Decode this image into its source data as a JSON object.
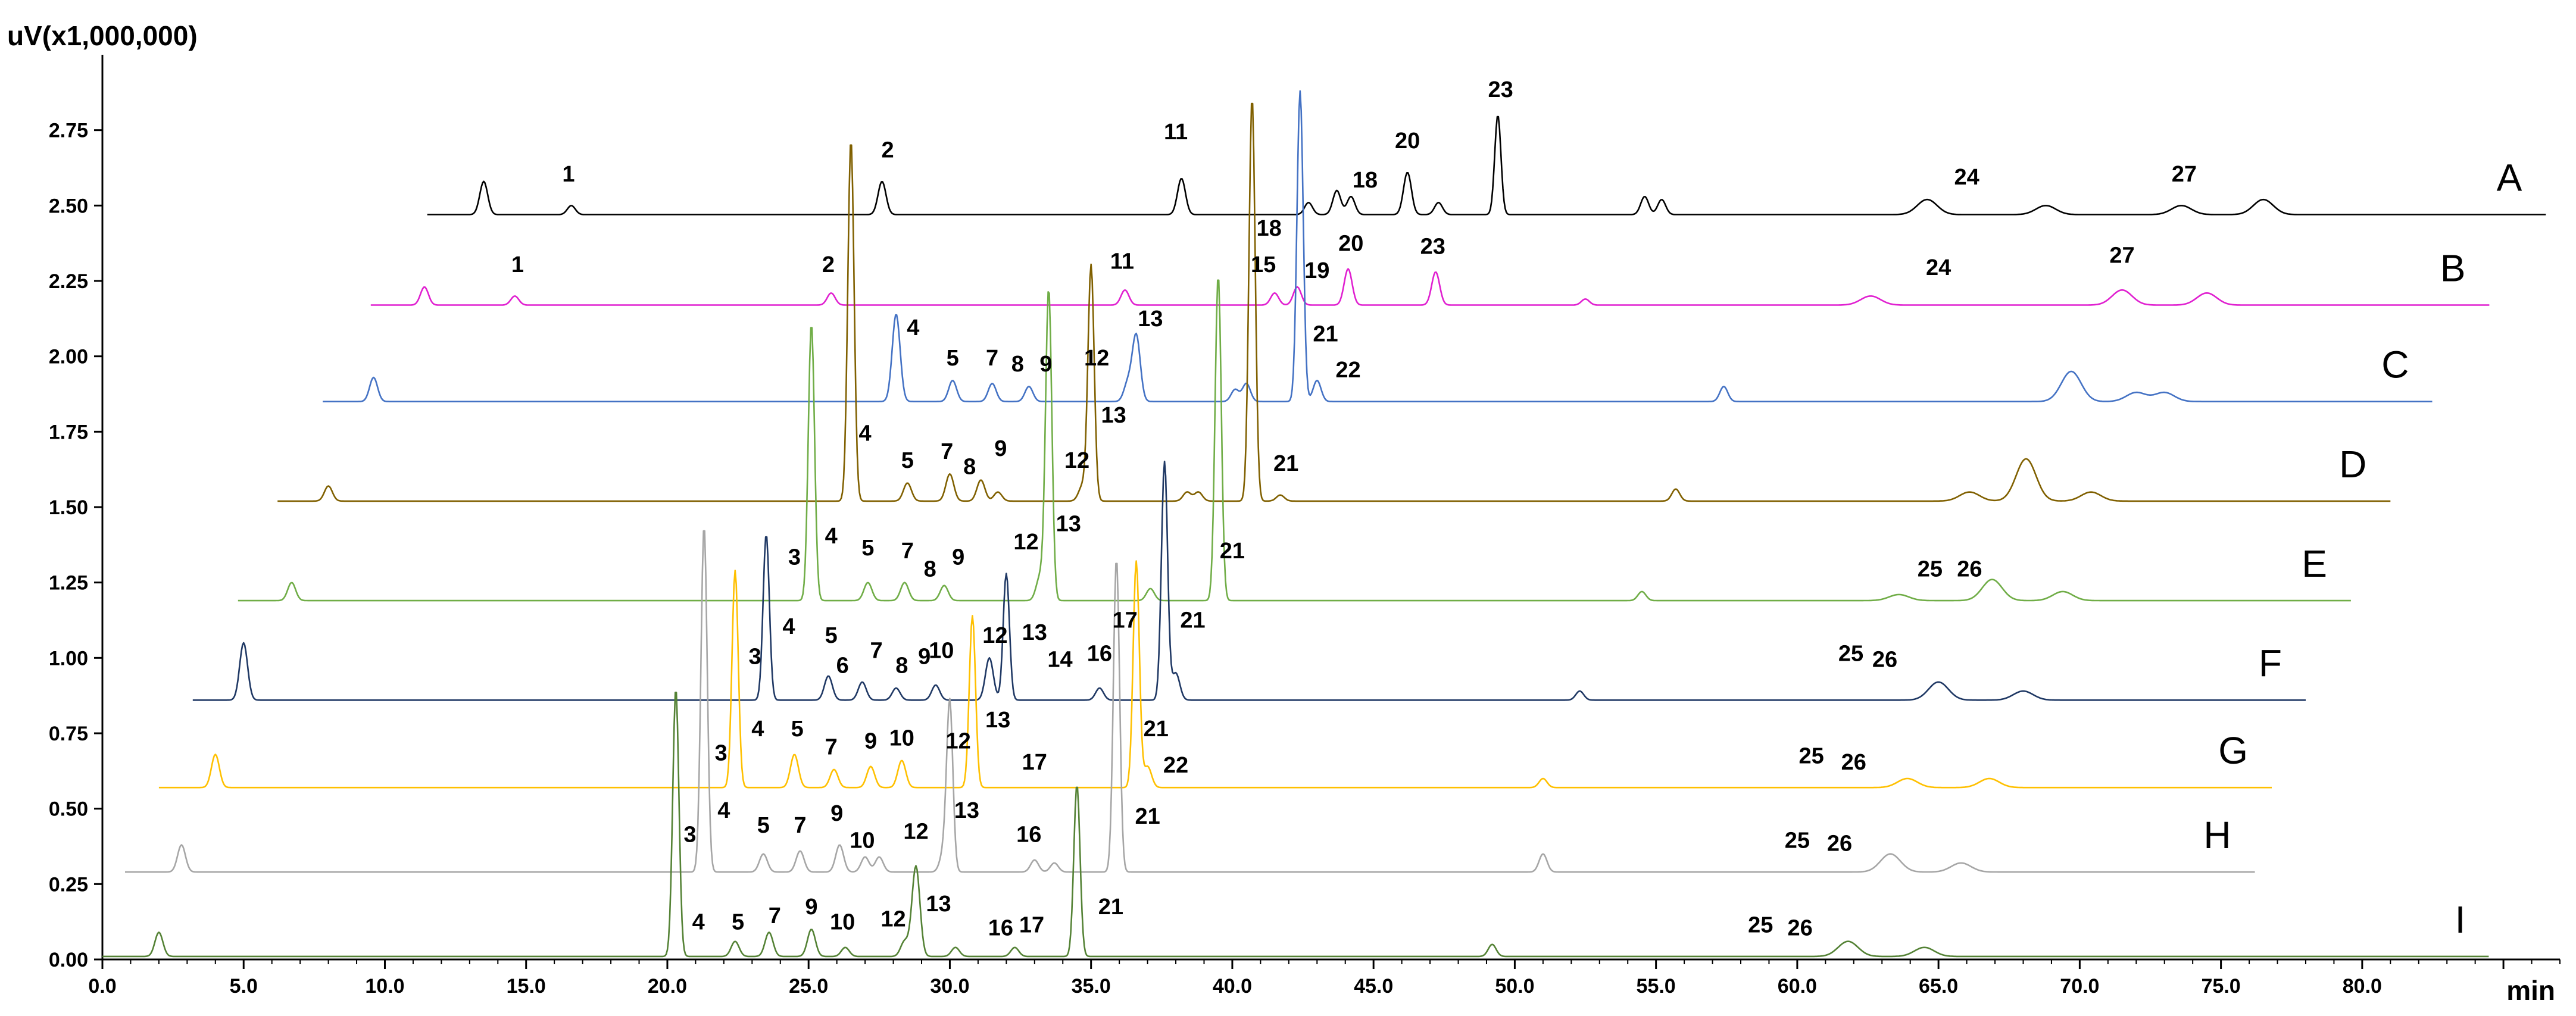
{
  "chart_data": {
    "type": "line",
    "title": "",
    "ylabel": "uV(x1,000,000)",
    "xlabel": "min",
    "xlim": [
      0.0,
      87.0
    ],
    "ylim": [
      0.0,
      3.0
    ],
    "x_ticks": [
      0.0,
      5.0,
      10.0,
      15.0,
      20.0,
      25.0,
      30.0,
      35.0,
      40.0,
      45.0,
      50.0,
      55.0,
      60.0,
      65.0,
      70.0,
      75.0,
      80.0
    ],
    "x_tick_labels": [
      "0.0",
      "5.0",
      "10.0",
      "15.0",
      "20.0",
      "25.0",
      "30.0",
      "35.0",
      "40.0",
      "45.0",
      "50.0",
      "55.0",
      "60.0",
      "65.0",
      "70.0",
      "75.0",
      "80.0"
    ],
    "y_ticks": [
      0.0,
      0.25,
      0.5,
      0.75,
      1.0,
      1.25,
      1.5,
      1.75,
      2.0,
      2.25,
      2.5,
      2.75
    ],
    "y_tick_labels": [
      "0.00",
      "0.25",
      "0.50",
      "0.75",
      "1.00",
      "1.25",
      "1.50",
      "1.75",
      "2.00",
      "2.25",
      "2.50",
      "2.75"
    ],
    "series": [
      {
        "name": "A",
        "color": "#000000",
        "x_start": 11.5,
        "x_end": 86.5,
        "baseline": 2.47,
        "peaks": [
          [
            13.5,
            0.11
          ],
          [
            16.6,
            0.03
          ],
          [
            27.6,
            0.11
          ],
          [
            38.2,
            0.12
          ],
          [
            42.7,
            0.04
          ],
          [
            43.7,
            0.08
          ],
          [
            44.2,
            0.06
          ],
          [
            46.2,
            0.14
          ],
          [
            47.3,
            0.04
          ],
          [
            49.4,
            0.33
          ],
          [
            54.6,
            0.06
          ],
          [
            55.2,
            0.05
          ],
          [
            64.6,
            0.05
          ],
          [
            68.8,
            0.03
          ],
          [
            73.6,
            0.03
          ],
          [
            76.5,
            0.05
          ]
        ],
        "labels": [
          [
            "1",
            16.5,
            2.58
          ],
          [
            "2",
            27.8,
            2.66
          ],
          [
            "11",
            38.0,
            2.72
          ],
          [
            "18",
            44.7,
            2.56
          ],
          [
            "20",
            46.2,
            2.69
          ],
          [
            "23",
            49.5,
            2.86
          ],
          [
            "24",
            66.0,
            2.57
          ],
          [
            "27",
            73.7,
            2.58
          ]
        ]
      },
      {
        "name": "B",
        "color": "#e020d0",
        "x_start": 9.5,
        "x_end": 84.5,
        "baseline": 2.17,
        "peaks": [
          [
            11.4,
            0.06
          ],
          [
            14.6,
            0.03
          ],
          [
            25.8,
            0.04
          ],
          [
            36.2,
            0.05
          ],
          [
            41.5,
            0.04
          ],
          [
            42.3,
            0.06
          ],
          [
            44.1,
            0.12
          ],
          [
            47.2,
            0.11
          ],
          [
            52.5,
            0.02
          ],
          [
            62.6,
            0.03
          ],
          [
            71.5,
            0.05
          ],
          [
            74.5,
            0.04
          ]
        ],
        "labels": [
          [
            "1",
            14.7,
            2.28
          ],
          [
            "2",
            25.7,
            2.28
          ],
          [
            "11",
            36.1,
            2.29
          ],
          [
            "15",
            41.1,
            2.28
          ],
          [
            "18",
            41.3,
            2.4
          ],
          [
            "19",
            43.0,
            2.26
          ],
          [
            "20",
            44.2,
            2.35
          ],
          [
            "23",
            47.1,
            2.34
          ],
          [
            "24",
            65.0,
            2.27
          ],
          [
            "27",
            71.5,
            2.31
          ]
        ]
      },
      {
        "name": "C",
        "color": "#4472c4",
        "x_start": 7.8,
        "x_end": 82.5,
        "baseline": 1.85,
        "peaks": [
          [
            9.6,
            0.08
          ],
          [
            28.1,
            0.29
          ],
          [
            30.1,
            0.07
          ],
          [
            31.5,
            0.06
          ],
          [
            32.8,
            0.05
          ],
          [
            36.3,
            0.06
          ],
          [
            36.6,
            0.22
          ],
          [
            40.1,
            0.04
          ],
          [
            40.5,
            0.06
          ],
          [
            42.4,
            1.03
          ],
          [
            43.0,
            0.07
          ],
          [
            57.4,
            0.05
          ],
          [
            69.7,
            0.1
          ],
          [
            72.0,
            0.03
          ],
          [
            73.0,
            0.03
          ]
        ],
        "labels": [
          [
            "4",
            28.7,
            2.07
          ],
          [
            "5",
            30.1,
            1.97
          ],
          [
            "7",
            31.5,
            1.97
          ],
          [
            "8",
            32.4,
            1.95
          ],
          [
            "9",
            33.4,
            1.95
          ],
          [
            "12",
            35.2,
            1.97
          ],
          [
            "13",
            37.1,
            2.1
          ],
          [
            "21",
            43.3,
            2.05
          ],
          [
            "22",
            44.1,
            1.93
          ]
        ]
      },
      {
        "name": "D",
        "color": "#806000",
        "x_start": 6.2,
        "x_end": 81.0,
        "baseline": 1.52,
        "peaks": [
          [
            8.0,
            0.05
          ],
          [
            26.5,
            1.2
          ],
          [
            28.5,
            0.06
          ],
          [
            30.0,
            0.09
          ],
          [
            31.1,
            0.07
          ],
          [
            31.7,
            0.03
          ],
          [
            34.7,
            0.05
          ],
          [
            35.0,
            0.78
          ],
          [
            38.4,
            0.03
          ],
          [
            38.8,
            0.03
          ],
          [
            40.7,
            1.34
          ],
          [
            41.7,
            0.02
          ],
          [
            55.7,
            0.04
          ],
          [
            66.1,
            0.03
          ],
          [
            68.1,
            0.14
          ],
          [
            70.4,
            0.03
          ]
        ],
        "labels": [
          [
            "4",
            27.0,
            1.72
          ],
          [
            "5",
            28.5,
            1.63
          ],
          [
            "7",
            29.9,
            1.66
          ],
          [
            "8",
            30.7,
            1.61
          ],
          [
            "9",
            31.8,
            1.67
          ],
          [
            "12",
            34.5,
            1.63
          ],
          [
            "13",
            35.8,
            1.78
          ],
          [
            "21",
            41.9,
            1.62
          ]
        ]
      },
      {
        "name": "E",
        "color": "#70ad47",
        "x_start": 4.8,
        "x_end": 79.6,
        "baseline": 1.19,
        "peaks": [
          [
            6.7,
            0.06
          ],
          [
            25.1,
            0.92
          ],
          [
            27.1,
            0.06
          ],
          [
            28.4,
            0.06
          ],
          [
            29.8,
            0.05
          ],
          [
            33.2,
            0.08
          ],
          [
            33.5,
            1.03
          ],
          [
            37.1,
            0.04
          ],
          [
            39.5,
            1.08
          ],
          [
            54.5,
            0.03
          ],
          [
            63.6,
            0.02
          ],
          [
            66.9,
            0.07
          ],
          [
            69.4,
            0.03
          ]
        ],
        "labels": [
          [
            "3",
            24.5,
            1.31
          ],
          [
            "4",
            25.8,
            1.38
          ],
          [
            "5",
            27.1,
            1.34
          ],
          [
            "7",
            28.5,
            1.33
          ],
          [
            "8",
            29.3,
            1.27
          ],
          [
            "9",
            30.3,
            1.31
          ],
          [
            "12",
            32.7,
            1.36
          ],
          [
            "13",
            34.2,
            1.42
          ],
          [
            "21",
            40.0,
            1.33
          ],
          [
            "25",
            64.7,
            1.27
          ],
          [
            "26",
            66.1,
            1.27
          ]
        ]
      },
      {
        "name": "F",
        "color": "#1f3864",
        "x_start": 3.2,
        "x_end": 78.0,
        "baseline": 0.86,
        "peaks": [
          [
            5.0,
            0.19
          ],
          [
            23.5,
            0.55
          ],
          [
            25.7,
            0.08
          ],
          [
            26.9,
            0.06
          ],
          [
            28.1,
            0.04
          ],
          [
            29.5,
            0.05
          ],
          [
            31.4,
            0.14
          ],
          [
            32.0,
            0.42
          ],
          [
            35.3,
            0.04
          ],
          [
            37.6,
            0.79
          ],
          [
            38.0,
            0.09
          ],
          [
            52.3,
            0.03
          ],
          [
            65.0,
            0.06
          ],
          [
            68.0,
            0.03
          ]
        ],
        "labels": [
          [
            "3",
            23.1,
            0.98
          ],
          [
            "4",
            24.3,
            1.08
          ],
          [
            "5",
            25.8,
            1.05
          ],
          [
            "6",
            26.2,
            0.95
          ],
          [
            "7",
            27.4,
            1.0
          ],
          [
            "8",
            28.3,
            0.95
          ],
          [
            "9",
            29.1,
            0.98
          ],
          [
            "10",
            29.7,
            1.0
          ],
          [
            "12",
            31.6,
            1.05
          ],
          [
            "13",
            33.0,
            1.06
          ],
          [
            "14",
            33.9,
            0.97
          ],
          [
            "16",
            35.3,
            0.99
          ],
          [
            "17",
            36.2,
            1.1
          ],
          [
            "21",
            38.6,
            1.1
          ],
          [
            "25",
            61.9,
            0.99
          ],
          [
            "26",
            63.1,
            0.97
          ]
        ]
      },
      {
        "name": "G",
        "color": "#ffc000",
        "x_start": 2.0,
        "x_end": 76.8,
        "baseline": 0.57,
        "peaks": [
          [
            4.0,
            0.11
          ],
          [
            22.4,
            0.72
          ],
          [
            24.5,
            0.11
          ],
          [
            25.9,
            0.06
          ],
          [
            27.2,
            0.07
          ],
          [
            28.3,
            0.09
          ],
          [
            30.8,
            0.57
          ],
          [
            36.6,
            0.75
          ],
          [
            37.0,
            0.07
          ],
          [
            51.0,
            0.03
          ],
          [
            63.9,
            0.03
          ],
          [
            66.8,
            0.03
          ]
        ],
        "labels": [
          [
            "3",
            21.9,
            0.66
          ],
          [
            "4",
            23.2,
            0.74
          ],
          [
            "5",
            24.6,
            0.74
          ],
          [
            "7",
            25.8,
            0.68
          ],
          [
            "9",
            27.2,
            0.7
          ],
          [
            "10",
            28.3,
            0.71
          ],
          [
            "12",
            30.3,
            0.7
          ],
          [
            "13",
            31.7,
            0.77
          ],
          [
            "17",
            33.0,
            0.63
          ],
          [
            "21",
            37.3,
            0.74
          ],
          [
            "22",
            38.0,
            0.62
          ],
          [
            "25",
            60.5,
            0.65
          ],
          [
            "26",
            62.0,
            0.63
          ]
        ]
      },
      {
        "name": "H",
        "color": "#a6a6a6",
        "x_start": 0.8,
        "x_end": 76.2,
        "baseline": 0.29,
        "peaks": [
          [
            2.8,
            0.09
          ],
          [
            21.3,
            1.15
          ],
          [
            23.4,
            0.06
          ],
          [
            24.7,
            0.07
          ],
          [
            26.1,
            0.09
          ],
          [
            27.0,
            0.05
          ],
          [
            27.5,
            0.05
          ],
          [
            29.8,
            0.07
          ],
          [
            30.0,
            0.55
          ],
          [
            33.0,
            0.04
          ],
          [
            33.7,
            0.03
          ],
          [
            35.9,
            1.04
          ],
          [
            51.0,
            0.06
          ],
          [
            63.3,
            0.06
          ],
          [
            65.8,
            0.03
          ]
        ],
        "labels": [
          [
            "3",
            20.8,
            0.39
          ],
          [
            "4",
            22.0,
            0.47
          ],
          [
            "5",
            23.4,
            0.42
          ],
          [
            "7",
            24.7,
            0.42
          ],
          [
            "9",
            26.0,
            0.46
          ],
          [
            "10",
            26.9,
            0.37
          ],
          [
            "12",
            28.8,
            0.4
          ],
          [
            "13",
            30.6,
            0.47
          ],
          [
            "16",
            32.8,
            0.39
          ],
          [
            "21",
            37.0,
            0.45
          ],
          [
            "25",
            60.0,
            0.37
          ],
          [
            "26",
            61.5,
            0.36
          ]
        ]
      },
      {
        "name": "I",
        "color": "#548235",
        "x_start": 0.0,
        "x_end": 84.5,
        "baseline": 0.01,
        "peaks": [
          [
            2.0,
            0.08
          ],
          [
            20.3,
            0.89
          ],
          [
            22.4,
            0.05
          ],
          [
            23.6,
            0.08
          ],
          [
            25.1,
            0.09
          ],
          [
            26.3,
            0.03
          ],
          [
            28.4,
            0.05
          ],
          [
            28.8,
            0.3
          ],
          [
            30.2,
            0.03
          ],
          [
            32.3,
            0.03
          ],
          [
            34.5,
            0.57
          ],
          [
            49.2,
            0.04
          ],
          [
            61.8,
            0.05
          ],
          [
            64.5,
            0.03
          ]
        ],
        "labels": [
          [
            "4",
            21.1,
            0.1
          ],
          [
            "5",
            22.5,
            0.1
          ],
          [
            "7",
            23.8,
            0.12
          ],
          [
            "9",
            25.1,
            0.15
          ],
          [
            "10",
            26.2,
            0.1
          ],
          [
            "12",
            28.0,
            0.11
          ],
          [
            "13",
            29.6,
            0.16
          ],
          [
            "16",
            31.8,
            0.08
          ],
          [
            "17",
            32.9,
            0.09
          ],
          [
            "21",
            35.7,
            0.15
          ],
          [
            "25",
            58.7,
            0.09
          ],
          [
            "26",
            60.1,
            0.08
          ]
        ]
      }
    ]
  }
}
